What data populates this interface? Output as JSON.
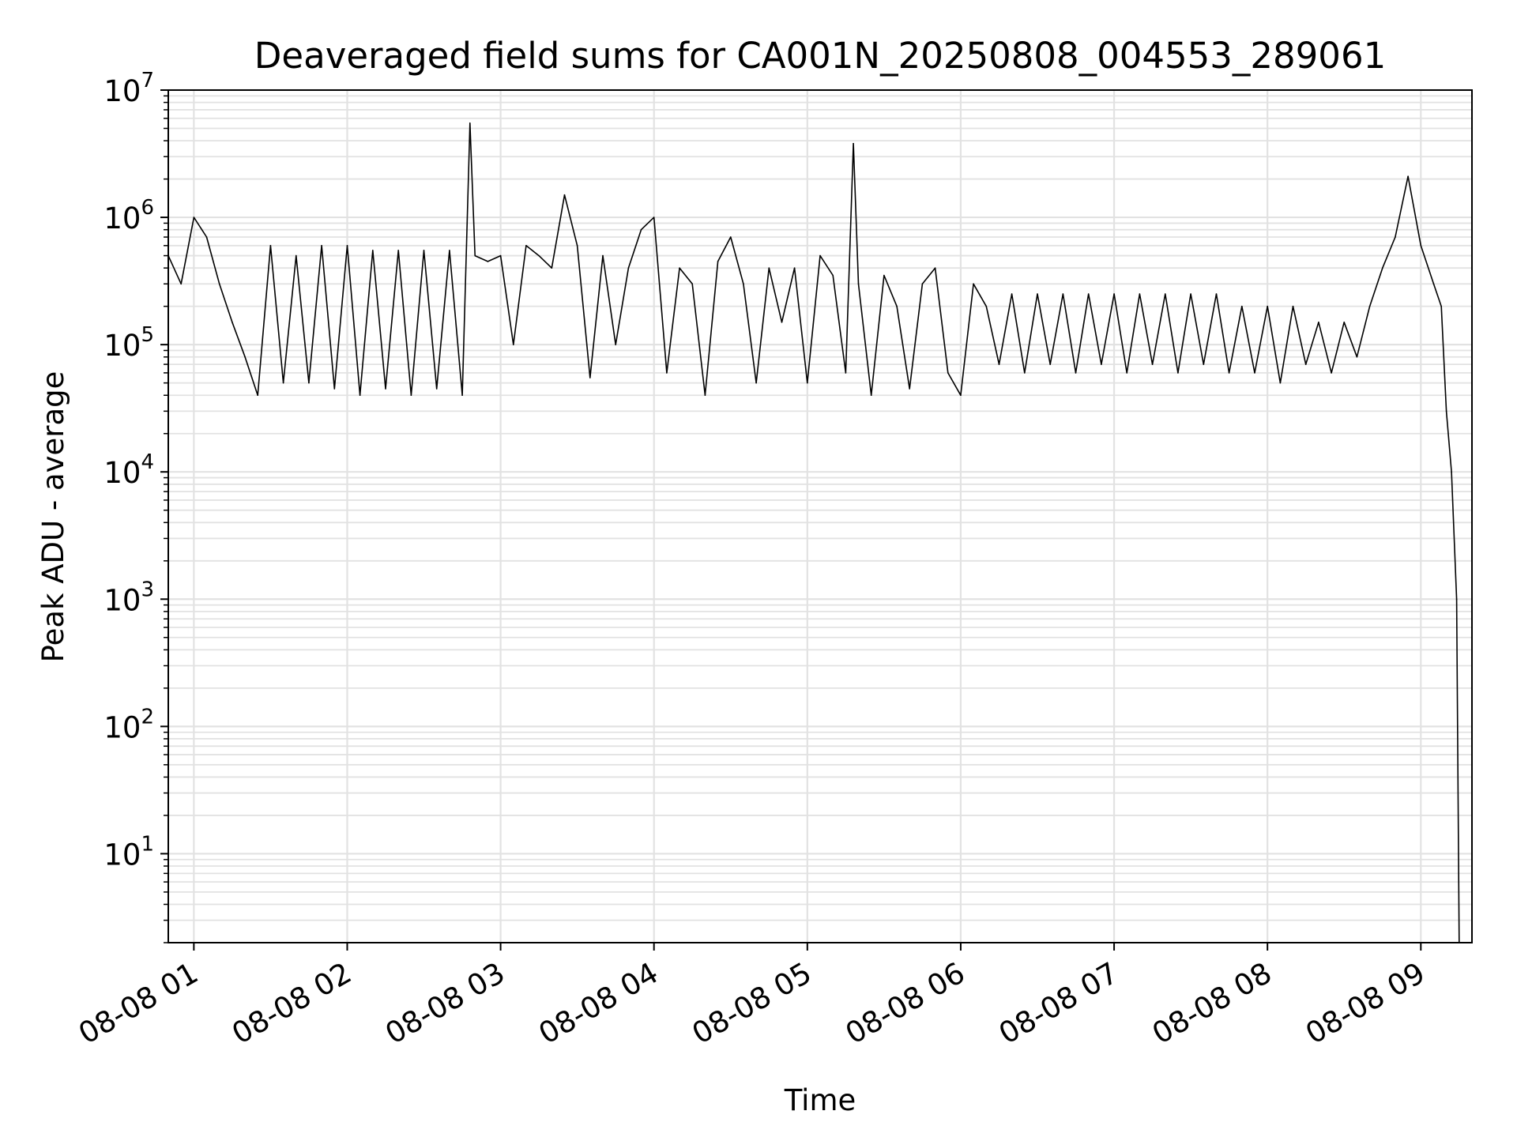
{
  "chart_data": {
    "type": "line",
    "title": "Deaveraged field sums for CA001N_20250808_004553_289061",
    "xlabel": "Time",
    "ylabel": "Peak ADU - average",
    "x_scale": "time",
    "y_scale": "log",
    "xlim": [
      "2025-08-08 00:50",
      "2025-08-08 09:20"
    ],
    "ylim": [
      2,
      10000000
    ],
    "x_ticks": [
      "08-08 01",
      "08-08 02",
      "08-08 03",
      "08-08 04",
      "08-08 05",
      "08-08 06",
      "08-08 07",
      "08-08 08",
      "08-08 09"
    ],
    "y_ticks": [
      {
        "base": "10",
        "exp": "1",
        "value": 10
      },
      {
        "base": "10",
        "exp": "2",
        "value": 100
      },
      {
        "base": "10",
        "exp": "3",
        "value": 1000
      },
      {
        "base": "10",
        "exp": "4",
        "value": 10000
      },
      {
        "base": "10",
        "exp": "5",
        "value": 100000
      },
      {
        "base": "10",
        "exp": "6",
        "value": 1000000
      },
      {
        "base": "10",
        "exp": "7",
        "value": 10000000
      }
    ],
    "grid": true,
    "line_color": "#000000",
    "grid_color": "#e2e2e2",
    "series": [
      {
        "x": [
          "2025-08-08 00:50",
          "2025-08-08 00:55",
          "2025-08-08 01:00",
          "2025-08-08 01:05",
          "2025-08-08 01:10",
          "2025-08-08 01:15",
          "2025-08-08 01:20",
          "2025-08-08 01:25",
          "2025-08-08 01:30",
          "2025-08-08 01:35",
          "2025-08-08 01:40",
          "2025-08-08 01:45",
          "2025-08-08 01:50",
          "2025-08-08 01:55",
          "2025-08-08 02:00",
          "2025-08-08 02:05",
          "2025-08-08 02:10",
          "2025-08-08 02:15",
          "2025-08-08 02:20",
          "2025-08-08 02:25",
          "2025-08-08 02:30",
          "2025-08-08 02:35",
          "2025-08-08 02:40",
          "2025-08-08 02:45",
          "2025-08-08 02:48",
          "2025-08-08 02:50",
          "2025-08-08 02:55",
          "2025-08-08 03:00",
          "2025-08-08 03:05",
          "2025-08-08 03:10",
          "2025-08-08 03:15",
          "2025-08-08 03:20",
          "2025-08-08 03:25",
          "2025-08-08 03:30",
          "2025-08-08 03:35",
          "2025-08-08 03:40",
          "2025-08-08 03:45",
          "2025-08-08 03:50",
          "2025-08-08 03:55",
          "2025-08-08 04:00",
          "2025-08-08 04:05",
          "2025-08-08 04:10",
          "2025-08-08 04:15",
          "2025-08-08 04:20",
          "2025-08-08 04:25",
          "2025-08-08 04:30",
          "2025-08-08 04:35",
          "2025-08-08 04:40",
          "2025-08-08 04:45",
          "2025-08-08 04:50",
          "2025-08-08 04:55",
          "2025-08-08 05:00",
          "2025-08-08 05:05",
          "2025-08-08 05:10",
          "2025-08-08 05:15",
          "2025-08-08 05:18",
          "2025-08-08 05:20",
          "2025-08-08 05:25",
          "2025-08-08 05:30",
          "2025-08-08 05:35",
          "2025-08-08 05:40",
          "2025-08-08 05:45",
          "2025-08-08 05:50",
          "2025-08-08 05:55",
          "2025-08-08 06:00",
          "2025-08-08 06:05",
          "2025-08-08 06:10",
          "2025-08-08 06:15",
          "2025-08-08 06:20",
          "2025-08-08 06:25",
          "2025-08-08 06:30",
          "2025-08-08 06:35",
          "2025-08-08 06:40",
          "2025-08-08 06:45",
          "2025-08-08 06:50",
          "2025-08-08 06:55",
          "2025-08-08 07:00",
          "2025-08-08 07:05",
          "2025-08-08 07:10",
          "2025-08-08 07:15",
          "2025-08-08 07:20",
          "2025-08-08 07:25",
          "2025-08-08 07:30",
          "2025-08-08 07:35",
          "2025-08-08 07:40",
          "2025-08-08 07:45",
          "2025-08-08 07:50",
          "2025-08-08 07:55",
          "2025-08-08 08:00",
          "2025-08-08 08:05",
          "2025-08-08 08:10",
          "2025-08-08 08:15",
          "2025-08-08 08:20",
          "2025-08-08 08:25",
          "2025-08-08 08:30",
          "2025-08-08 08:35",
          "2025-08-08 08:40",
          "2025-08-08 08:45",
          "2025-08-08 08:50",
          "2025-08-08 08:55",
          "2025-08-08 09:00",
          "2025-08-08 09:05",
          "2025-08-08 09:08",
          "2025-08-08 09:10",
          "2025-08-08 09:12",
          "2025-08-08 09:14",
          "2025-08-08 09:15"
        ],
        "y": [
          500000,
          300000,
          1000000,
          700000,
          300000,
          150000,
          80000,
          40000,
          600000,
          50000,
          500000,
          50000,
          600000,
          45000,
          600000,
          40000,
          550000,
          45000,
          550000,
          40000,
          550000,
          45000,
          550000,
          40000,
          5500000,
          500000,
          450000,
          500000,
          100000,
          600000,
          500000,
          400000,
          1500000,
          600000,
          55000,
          500000,
          100000,
          400000,
          800000,
          1000000,
          60000,
          400000,
          300000,
          40000,
          450000,
          700000,
          300000,
          50000,
          400000,
          150000,
          400000,
          50000,
          500000,
          350000,
          60000,
          3800000,
          300000,
          40000,
          350000,
          200000,
          45000,
          300000,
          400000,
          60000,
          40000,
          300000,
          200000,
          70000,
          250000,
          60000,
          250000,
          70000,
          250000,
          60000,
          250000,
          70000,
          250000,
          60000,
          250000,
          70000,
          250000,
          60000,
          250000,
          70000,
          250000,
          60000,
          200000,
          60000,
          200000,
          50000,
          200000,
          70000,
          150000,
          60000,
          150000,
          80000,
          200000,
          400000,
          700000,
          2100000,
          600000,
          300000,
          200000,
          30000,
          10000,
          1000,
          2
        ]
      }
    ]
  }
}
